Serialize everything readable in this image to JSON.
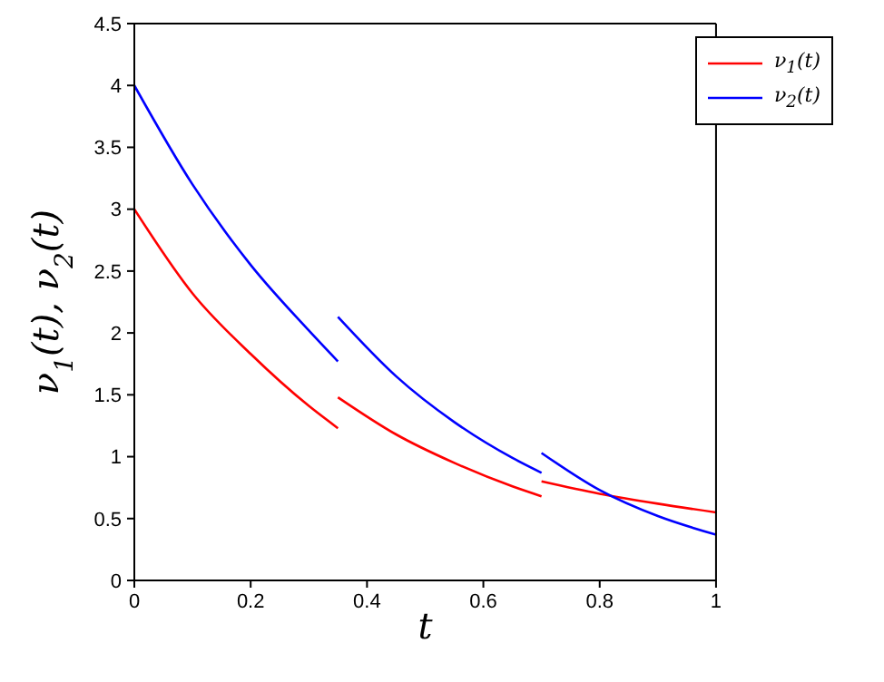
{
  "chart_data": {
    "type": "line",
    "xlabel": "t",
    "ylabel": "ν$_{1}$(t), ν$_{2}$(t)",
    "xlim": [
      0,
      1
    ],
    "ylim": [
      0,
      4.5
    ],
    "xticks": [
      0,
      0.2,
      0.4,
      0.6,
      0.8,
      1
    ],
    "yticks": [
      0,
      0.5,
      1,
      1.5,
      2,
      2.5,
      3,
      3.5,
      4,
      4.5
    ],
    "grid": false,
    "legend": "top right",
    "marker": "none",
    "line_style": "solid",
    "series": [
      {
        "name": "ν$_{1}$(t)",
        "color": "#ff0000",
        "x": [
          0,
          0.1,
          0.2,
          0.3,
          0.35,
          0.35,
          0.45,
          0.55,
          0.65,
          0.7,
          0.7,
          0.8,
          0.9,
          1
        ],
        "values": [
          3,
          2.32,
          1.83,
          1.41,
          1.23,
          1.48,
          1.18,
          0.95,
          0.76,
          0.68,
          0.8,
          0.7,
          0.62,
          0.55
        ]
      },
      {
        "name": "ν$_{2}$(t)",
        "color": "#0000ff",
        "x": [
          0,
          0.1,
          0.2,
          0.3,
          0.35,
          0.35,
          0.45,
          0.55,
          0.65,
          0.7,
          0.7,
          0.8,
          0.9,
          1
        ],
        "values": [
          4,
          3.2,
          2.55,
          2.02,
          1.77,
          2.13,
          1.65,
          1.28,
          0.99,
          0.87,
          1.03,
          0.73,
          0.52,
          0.37
        ]
      }
    ]
  }
}
